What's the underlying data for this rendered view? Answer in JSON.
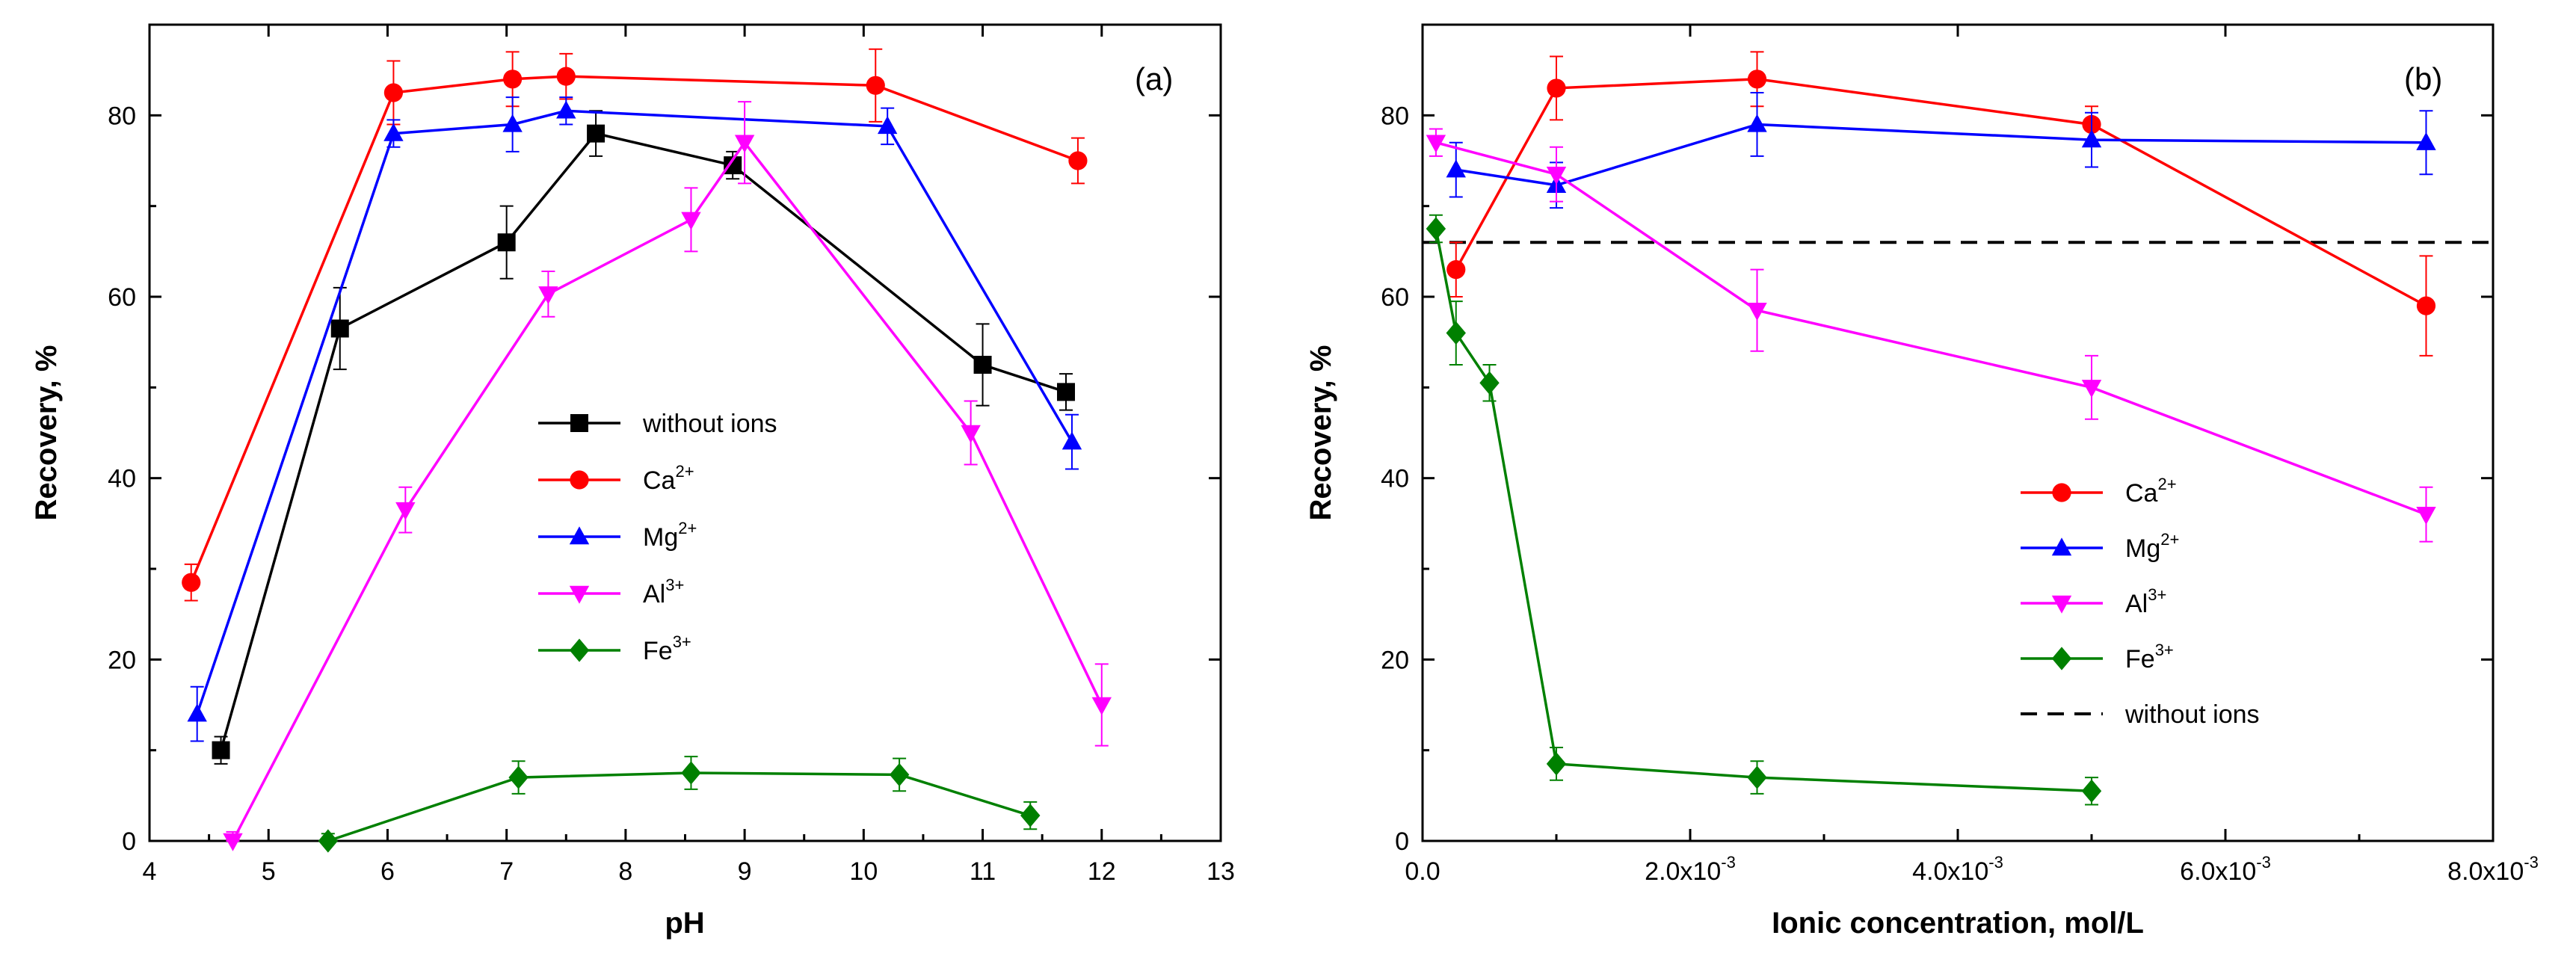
{
  "chart_data": [
    {
      "type": "line",
      "panel_label": "(a)",
      "xlabel": "pH",
      "ylabel": "Recovery, %",
      "xlim": [
        4,
        13
      ],
      "ylim": [
        0,
        90
      ],
      "xticks": [
        4,
        5,
        6,
        7,
        8,
        9,
        10,
        11,
        12,
        13
      ],
      "xtick_labels": [
        "4",
        "5",
        "6",
        "7",
        "8",
        "9",
        "10",
        "11",
        "12",
        "13"
      ],
      "yticks": [
        0,
        20,
        40,
        60,
        80
      ],
      "ytick_labels": [
        "0",
        "20",
        "40",
        "60",
        "80"
      ],
      "legend_position": "center-right",
      "series": [
        {
          "name": "without ions",
          "ion": "without ions",
          "charge": "",
          "color": "#000000",
          "marker": "square",
          "x": [
            4.6,
            5.6,
            7.0,
            7.75,
            8.9,
            11.0,
            11.7
          ],
          "y": [
            10,
            56.5,
            66,
            78,
            74.5,
            52.5,
            49.5
          ],
          "err": [
            1.5,
            4.5,
            4,
            2.5,
            1.5,
            4.5,
            2
          ]
        },
        {
          "name": "Ca2+",
          "ion": "Ca",
          "charge": "2+",
          "color": "#ff0000",
          "marker": "circle",
          "x": [
            4.35,
            6.05,
            7.05,
            7.5,
            10.1,
            11.8
          ],
          "y": [
            28.5,
            82.5,
            84,
            84.3,
            83.3,
            75
          ],
          "err": [
            2,
            3.5,
            3,
            2.5,
            4,
            2.5
          ]
        },
        {
          "name": "Mg2+",
          "ion": "Mg",
          "charge": "2+",
          "color": "#0000ff",
          "marker": "triangle-up",
          "x": [
            4.4,
            6.05,
            7.05,
            7.5,
            10.2,
            11.75
          ],
          "y": [
            14,
            78,
            79,
            80.5,
            78.8,
            44
          ],
          "err": [
            3,
            1.5,
            3,
            1.5,
            2,
            3
          ]
        },
        {
          "name": "Al3+",
          "ion": "Al",
          "charge": "3+",
          "color": "#ff00ff",
          "marker": "triangle-down",
          "x": [
            4.7,
            6.15,
            7.35,
            8.55,
            9.0,
            10.9,
            12.0
          ],
          "y": [
            0,
            36.5,
            60.3,
            68.5,
            77,
            45,
            15
          ],
          "err": [
            1,
            2.5,
            2.5,
            3.5,
            4.5,
            3.5,
            4.5
          ]
        },
        {
          "name": "Fe3+",
          "ion": "Fe",
          "charge": "3+",
          "color": "#008000",
          "marker": "diamond",
          "x": [
            5.5,
            7.1,
            8.55,
            10.3,
            11.4
          ],
          "y": [
            0,
            7,
            7.5,
            7.3,
            2.8
          ],
          "err": [
            0.8,
            1.8,
            1.8,
            1.8,
            1.5
          ]
        }
      ]
    },
    {
      "type": "line",
      "panel_label": "(b)",
      "xlabel": "Ionic concentration, mol/L",
      "ylabel": "Recovery, %",
      "xlim": [
        0,
        0.008
      ],
      "ylim": [
        0,
        90
      ],
      "xticks": [
        0,
        0.002,
        0.004,
        0.006,
        0.008
      ],
      "xtick_labels": [
        "0.0",
        "2.0x10",
        "4.0x10",
        "6.0x10",
        "8.0x10"
      ],
      "xtick_exponents": [
        "",
        "-3",
        "-3",
        "-3",
        "-3"
      ],
      "yticks": [
        0,
        20,
        40,
        60,
        80
      ],
      "ytick_labels": [
        "0",
        "20",
        "40",
        "60",
        "80"
      ],
      "legend_position": "lower-center-right",
      "reference_line": {
        "name": "without ions",
        "y": 66,
        "color": "#000000",
        "style": "dashed"
      },
      "series": [
        {
          "name": "Ca2+",
          "ion": "Ca",
          "charge": "2+",
          "color": "#ff0000",
          "marker": "circle",
          "x": [
            0.00025,
            0.001,
            0.0025,
            0.005,
            0.0075
          ],
          "y": [
            63,
            83,
            84,
            79,
            59
          ],
          "err": [
            3,
            3.5,
            3,
            2,
            5.5
          ]
        },
        {
          "name": "Mg2+",
          "ion": "Mg",
          "charge": "2+",
          "color": "#0000ff",
          "marker": "triangle-up",
          "x": [
            0.00025,
            0.001,
            0.0025,
            0.005,
            0.0075
          ],
          "y": [
            74,
            72.3,
            79,
            77.3,
            77
          ],
          "err": [
            3,
            2.5,
            3.5,
            3,
            3.5
          ]
        },
        {
          "name": "Al3+",
          "ion": "Al",
          "charge": "3+",
          "color": "#ff00ff",
          "marker": "triangle-down",
          "x": [
            0.0001,
            0.001,
            0.0025,
            0.005,
            0.0075
          ],
          "y": [
            77,
            73.5,
            58.5,
            50,
            36
          ],
          "err": [
            1.5,
            3,
            4.5,
            3.5,
            3
          ]
        },
        {
          "name": "Fe3+",
          "ion": "Fe",
          "charge": "3+",
          "color": "#008000",
          "marker": "diamond",
          "x": [
            0.0001,
            0.00025,
            0.0005,
            0.001,
            0.0025,
            0.005
          ],
          "y": [
            67.5,
            56,
            50.5,
            8.5,
            7,
            5.5
          ],
          "err": [
            1.5,
            3.5,
            2,
            1.8,
            1.8,
            1.5
          ]
        }
      ]
    }
  ]
}
